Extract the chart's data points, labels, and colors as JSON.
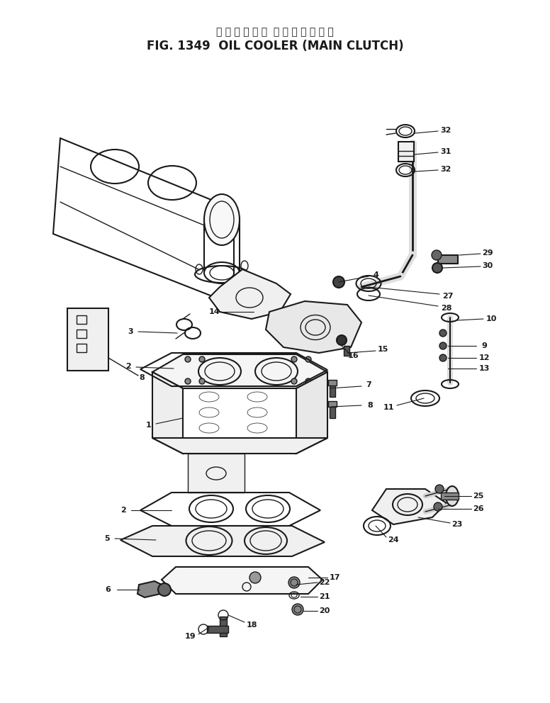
{
  "title_japanese": "オイルクーラ　メインクラッチ",
  "title_english": "FIG. 1349  OIL COOLER (MAIN CLUTCH)",
  "bg_color": "#ffffff",
  "line_color": "#1a1a1a",
  "fig_width": 7.76,
  "fig_height": 9.92,
  "dpi": 100
}
